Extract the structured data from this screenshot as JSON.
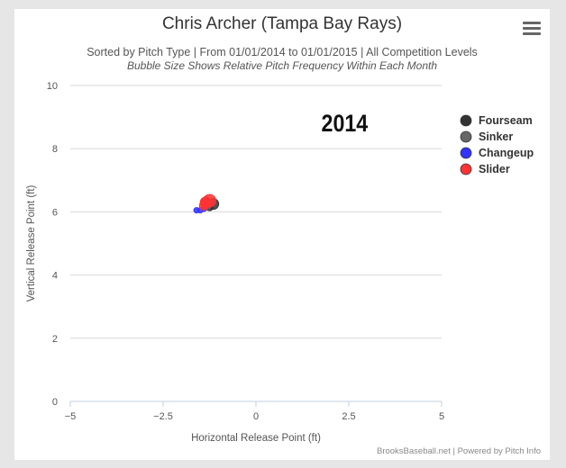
{
  "header": {
    "title": "Chris Archer (Tampa Bay Rays)",
    "subtitle": "Sorted by Pitch Type | From 01/01/2014 to 01/01/2015 | All Competition Levels",
    "subtitle2": "Bubble Size Shows Relative Pitch Frequency Within Each Month"
  },
  "menu": {
    "icon": "hamburger-menu-icon"
  },
  "credits": "BrooksBaseball.net | Powered by Pitch Info",
  "chart_data": {
    "type": "scatter",
    "annotation": "2014",
    "xlabel": "Horizontal Release Point (ft)",
    "ylabel": "Vertical Release Point (ft)",
    "xlim": [
      -5,
      5
    ],
    "ylim": [
      0,
      10
    ],
    "xticks": [
      "−5",
      "−2.5",
      "0",
      "2.5",
      "5"
    ],
    "yticks": [
      "0",
      "2",
      "4",
      "6",
      "8",
      "10"
    ],
    "grid": true,
    "legend_position": "right",
    "series": [
      {
        "name": "Fourseam",
        "color": "#333333",
        "points": [
          {
            "x": -1.35,
            "y": 6.3,
            "r": 6
          },
          {
            "x": -1.15,
            "y": 6.25,
            "r": 6
          },
          {
            "x": -1.25,
            "y": 6.15,
            "r": 4
          }
        ]
      },
      {
        "name": "Sinker",
        "color": "#666666",
        "points": [
          {
            "x": -1.3,
            "y": 6.2,
            "r": 4
          },
          {
            "x": -1.2,
            "y": 6.3,
            "r": 3
          }
        ]
      },
      {
        "name": "Changeup",
        "color": "#3333ff",
        "points": [
          {
            "x": -1.6,
            "y": 6.05,
            "r": 3
          },
          {
            "x": -1.5,
            "y": 6.05,
            "r": 3
          },
          {
            "x": -1.4,
            "y": 6.1,
            "r": 3
          }
        ]
      },
      {
        "name": "Slider",
        "color": "#ff3333",
        "points": [
          {
            "x": -1.35,
            "y": 6.3,
            "r": 6
          },
          {
            "x": -1.25,
            "y": 6.35,
            "r": 7
          },
          {
            "x": -1.4,
            "y": 6.2,
            "r": 5
          }
        ]
      }
    ]
  }
}
